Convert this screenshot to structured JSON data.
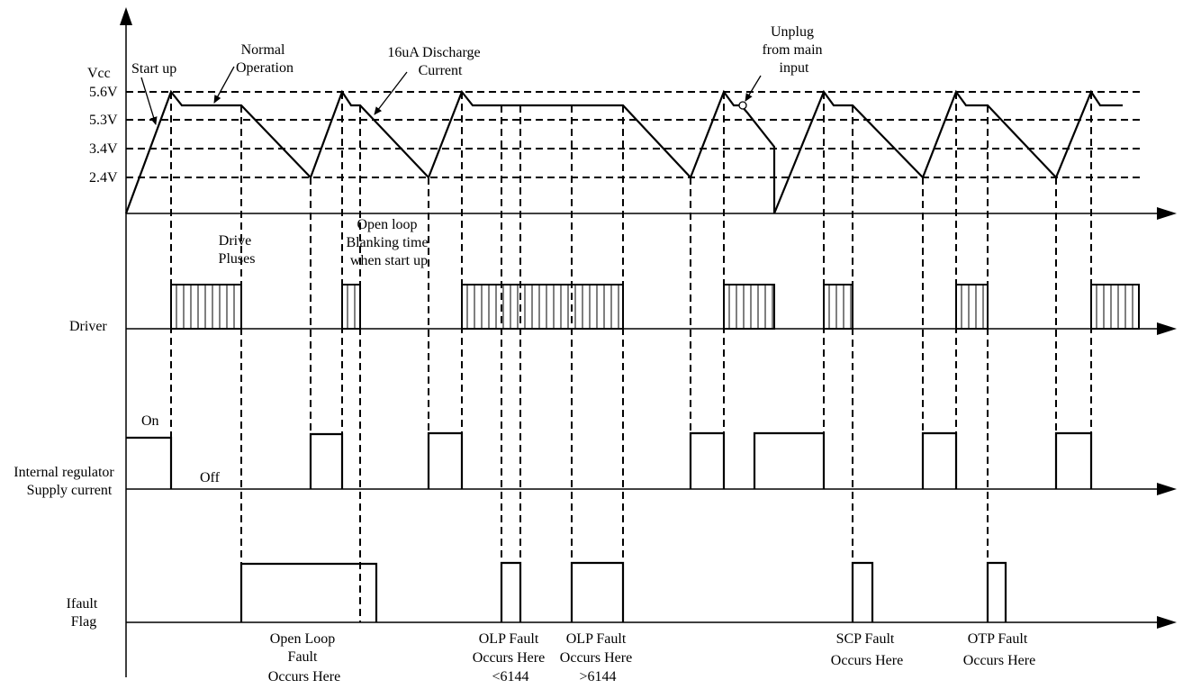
{
  "levels": {
    "axis_title": "Vcc",
    "v56": "5.6V",
    "v53": "5.3V",
    "v34": "3.4V",
    "v24": "2.4V"
  },
  "signals": {
    "driver": "Driver",
    "regulator_line1": "Internal regulator",
    "regulator_line2": "Supply current",
    "on": "On",
    "off": "Off",
    "ifault_line1": "Ifault",
    "ifault_line2": "Flag"
  },
  "annotations": {
    "start_up": "Start up",
    "normal_line1": "Normal",
    "normal_line2": "Operation",
    "discharge_line1": "16uA Discharge",
    "discharge_line2": "Current",
    "unplug_line1": "Unplug",
    "unplug_line2": "from main",
    "unplug_line3": "input",
    "drive_line1": "Drive",
    "drive_line2": "Pluses",
    "blank_line1": "Open loop",
    "blank_line2": "Blanking time",
    "blank_line3": "when start up"
  },
  "faults": {
    "open_loop": [
      "Open Loop",
      "Fault",
      "Occurs Here"
    ],
    "olp_lt": [
      "OLP Fault",
      "Occurs Here",
      "<6144"
    ],
    "olp_gt": [
      "OLP Fault",
      "Occurs Here",
      ">6144"
    ],
    "scp": [
      "SCP Fault",
      "Occurs Here"
    ],
    "otp": [
      "OTP Fault",
      "Occurs Here"
    ]
  }
}
